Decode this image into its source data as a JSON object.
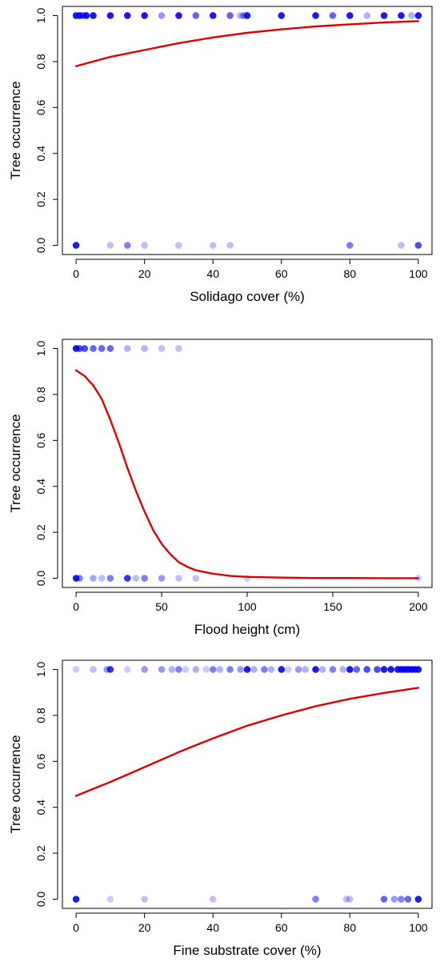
{
  "colors": {
    "points": "#0000ee",
    "fit_line": "#e00000",
    "axis": "#000000"
  },
  "chart_data": [
    {
      "type": "scatter",
      "title": "",
      "xlabel": "Solidago cover (%)",
      "ylabel": "Tree occurrence",
      "xlim": [
        -4,
        104
      ],
      "ylim": [
        -0.04,
        1.04
      ],
      "xticks": [
        0,
        20,
        40,
        60,
        80,
        100
      ],
      "yticks": [
        0.0,
        0.2,
        0.4,
        0.6,
        0.8,
        1.0
      ],
      "grid": false,
      "legend": "none",
      "points": [
        {
          "x": 0,
          "y": 1,
          "alpha": 0.9
        },
        {
          "x": 1,
          "y": 1,
          "alpha": 0.9
        },
        {
          "x": 2,
          "y": 1,
          "alpha": 0.7
        },
        {
          "x": 3,
          "y": 1,
          "alpha": 0.9
        },
        {
          "x": 5,
          "y": 1,
          "alpha": 0.9
        },
        {
          "x": 10,
          "y": 1,
          "alpha": 0.9
        },
        {
          "x": 15,
          "y": 1,
          "alpha": 0.9
        },
        {
          "x": 20,
          "y": 1,
          "alpha": 0.9
        },
        {
          "x": 25,
          "y": 1,
          "alpha": 0.4
        },
        {
          "x": 30,
          "y": 1,
          "alpha": 0.9
        },
        {
          "x": 35,
          "y": 1,
          "alpha": 0.6
        },
        {
          "x": 40,
          "y": 1,
          "alpha": 0.9
        },
        {
          "x": 45,
          "y": 1,
          "alpha": 0.6
        },
        {
          "x": 48,
          "y": 1,
          "alpha": 0.3
        },
        {
          "x": 49,
          "y": 1,
          "alpha": 0.5
        },
        {
          "x": 50,
          "y": 1,
          "alpha": 0.9
        },
        {
          "x": 60,
          "y": 1,
          "alpha": 0.9
        },
        {
          "x": 70,
          "y": 1,
          "alpha": 0.9
        },
        {
          "x": 75,
          "y": 1,
          "alpha": 0.6
        },
        {
          "x": 80,
          "y": 1,
          "alpha": 0.9
        },
        {
          "x": 85,
          "y": 1,
          "alpha": 0.3
        },
        {
          "x": 90,
          "y": 1,
          "alpha": 0.9
        },
        {
          "x": 95,
          "y": 1,
          "alpha": 0.9
        },
        {
          "x": 98,
          "y": 1,
          "alpha": 0.3
        },
        {
          "x": 100,
          "y": 1,
          "alpha": 0.9
        },
        {
          "x": 0,
          "y": 0,
          "alpha": 0.9
        },
        {
          "x": 10,
          "y": 0,
          "alpha": 0.25
        },
        {
          "x": 15,
          "y": 0,
          "alpha": 0.5
        },
        {
          "x": 20,
          "y": 0,
          "alpha": 0.25
        },
        {
          "x": 30,
          "y": 0,
          "alpha": 0.25
        },
        {
          "x": 40,
          "y": 0,
          "alpha": 0.25
        },
        {
          "x": 45,
          "y": 0,
          "alpha": 0.25
        },
        {
          "x": 80,
          "y": 0,
          "alpha": 0.5
        },
        {
          "x": 95,
          "y": 0,
          "alpha": 0.25
        },
        {
          "x": 100,
          "y": 0,
          "alpha": 0.7
        }
      ],
      "fit": {
        "x": [
          0,
          10,
          20,
          30,
          40,
          50,
          60,
          70,
          80,
          90,
          100
        ],
        "y": [
          0.78,
          0.82,
          0.85,
          0.88,
          0.905,
          0.925,
          0.94,
          0.953,
          0.962,
          0.97,
          0.976
        ]
      }
    },
    {
      "type": "scatter",
      "title": "",
      "xlabel": "Flood height (cm)",
      "ylabel": "Tree occurrence",
      "xlim": [
        -8,
        208
      ],
      "ylim": [
        -0.04,
        1.04
      ],
      "xticks": [
        0,
        50,
        100,
        150,
        200
      ],
      "yticks": [
        0.0,
        0.2,
        0.4,
        0.6,
        0.8,
        1.0
      ],
      "grid": false,
      "legend": "none",
      "points": [
        {
          "x": 0,
          "y": 1,
          "alpha": 0.9
        },
        {
          "x": 2,
          "y": 1,
          "alpha": 0.7
        },
        {
          "x": 5,
          "y": 1,
          "alpha": 0.7
        },
        {
          "x": 10,
          "y": 1,
          "alpha": 0.6
        },
        {
          "x": 15,
          "y": 1,
          "alpha": 0.6
        },
        {
          "x": 20,
          "y": 1,
          "alpha": 0.6
        },
        {
          "x": 30,
          "y": 1,
          "alpha": 0.3
        },
        {
          "x": 40,
          "y": 1,
          "alpha": 0.3
        },
        {
          "x": 50,
          "y": 1,
          "alpha": 0.25
        },
        {
          "x": 60,
          "y": 1,
          "alpha": 0.25
        },
        {
          "x": 0,
          "y": 0,
          "alpha": 0.9
        },
        {
          "x": 2,
          "y": 0,
          "alpha": 0.5
        },
        {
          "x": 10,
          "y": 0,
          "alpha": 0.35
        },
        {
          "x": 15,
          "y": 0,
          "alpha": 0.25
        },
        {
          "x": 20,
          "y": 0,
          "alpha": 0.5
        },
        {
          "x": 30,
          "y": 0,
          "alpha": 0.8
        },
        {
          "x": 35,
          "y": 0,
          "alpha": 0.25
        },
        {
          "x": 40,
          "y": 0,
          "alpha": 0.5
        },
        {
          "x": 50,
          "y": 0,
          "alpha": 0.4
        },
        {
          "x": 60,
          "y": 0,
          "alpha": 0.25
        },
        {
          "x": 70,
          "y": 0,
          "alpha": 0.25
        },
        {
          "x": 100,
          "y": 0,
          "alpha": 0.2
        },
        {
          "x": 200,
          "y": 0,
          "alpha": 0.2
        }
      ],
      "fit": {
        "x": [
          0,
          5,
          10,
          15,
          20,
          25,
          30,
          35,
          40,
          45,
          50,
          55,
          60,
          65,
          70,
          80,
          90,
          100,
          120,
          140,
          160,
          180,
          200
        ],
        "y": [
          0.905,
          0.88,
          0.84,
          0.78,
          0.69,
          0.59,
          0.48,
          0.38,
          0.29,
          0.21,
          0.15,
          0.105,
          0.07,
          0.05,
          0.035,
          0.02,
          0.01,
          0.006,
          0.003,
          0.001,
          0.001,
          0.0005,
          0.0002
        ]
      }
    },
    {
      "type": "scatter",
      "title": "",
      "xlabel": "Fine substrate cover (%)",
      "ylabel": "Tree occurrence",
      "xlim": [
        -4,
        104
      ],
      "ylim": [
        -0.04,
        1.04
      ],
      "xticks": [
        0,
        20,
        40,
        60,
        80,
        100
      ],
      "yticks": [
        0.0,
        0.2,
        0.4,
        0.6,
        0.8,
        1.0
      ],
      "grid": false,
      "legend": "none",
      "points": [
        {
          "x": 0,
          "y": 1,
          "alpha": 0.2
        },
        {
          "x": 5,
          "y": 1,
          "alpha": 0.25
        },
        {
          "x": 9,
          "y": 1,
          "alpha": 0.4
        },
        {
          "x": 10,
          "y": 1,
          "alpha": 0.8
        },
        {
          "x": 15,
          "y": 1,
          "alpha": 0.2
        },
        {
          "x": 20,
          "y": 1,
          "alpha": 0.4
        },
        {
          "x": 25,
          "y": 1,
          "alpha": 0.4
        },
        {
          "x": 28,
          "y": 1,
          "alpha": 0.3
        },
        {
          "x": 30,
          "y": 1,
          "alpha": 0.5
        },
        {
          "x": 32,
          "y": 1,
          "alpha": 0.2
        },
        {
          "x": 35,
          "y": 1,
          "alpha": 0.3
        },
        {
          "x": 38,
          "y": 1,
          "alpha": 0.2
        },
        {
          "x": 40,
          "y": 1,
          "alpha": 0.5
        },
        {
          "x": 42,
          "y": 1,
          "alpha": 0.3
        },
        {
          "x": 45,
          "y": 1,
          "alpha": 0.5
        },
        {
          "x": 48,
          "y": 1,
          "alpha": 0.4
        },
        {
          "x": 50,
          "y": 1,
          "alpha": 0.9
        },
        {
          "x": 52,
          "y": 1,
          "alpha": 0.3
        },
        {
          "x": 55,
          "y": 1,
          "alpha": 0.5
        },
        {
          "x": 57,
          "y": 1,
          "alpha": 0.3
        },
        {
          "x": 60,
          "y": 1,
          "alpha": 0.9
        },
        {
          "x": 62,
          "y": 1,
          "alpha": 0.2
        },
        {
          "x": 65,
          "y": 1,
          "alpha": 0.4
        },
        {
          "x": 67,
          "y": 1,
          "alpha": 0.3
        },
        {
          "x": 70,
          "y": 1,
          "alpha": 0.9
        },
        {
          "x": 72,
          "y": 1,
          "alpha": 0.3
        },
        {
          "x": 75,
          "y": 1,
          "alpha": 0.5
        },
        {
          "x": 78,
          "y": 1,
          "alpha": 0.3
        },
        {
          "x": 80,
          "y": 1,
          "alpha": 0.9
        },
        {
          "x": 82,
          "y": 1,
          "alpha": 0.6
        },
        {
          "x": 85,
          "y": 1,
          "alpha": 0.7
        },
        {
          "x": 88,
          "y": 1,
          "alpha": 0.7
        },
        {
          "x": 90,
          "y": 1,
          "alpha": 0.9
        },
        {
          "x": 92,
          "y": 1,
          "alpha": 0.9
        },
        {
          "x": 94,
          "y": 1,
          "alpha": 0.9
        },
        {
          "x": 95,
          "y": 1,
          "alpha": 0.9
        },
        {
          "x": 96,
          "y": 1,
          "alpha": 0.9
        },
        {
          "x": 97,
          "y": 1,
          "alpha": 0.9
        },
        {
          "x": 98,
          "y": 1,
          "alpha": 0.9
        },
        {
          "x": 99,
          "y": 1,
          "alpha": 0.9
        },
        {
          "x": 100,
          "y": 1,
          "alpha": 0.9
        },
        {
          "x": 0,
          "y": 0,
          "alpha": 0.9
        },
        {
          "x": 10,
          "y": 0,
          "alpha": 0.2
        },
        {
          "x": 20,
          "y": 0,
          "alpha": 0.25
        },
        {
          "x": 40,
          "y": 0,
          "alpha": 0.25
        },
        {
          "x": 70,
          "y": 0,
          "alpha": 0.5
        },
        {
          "x": 79,
          "y": 0,
          "alpha": 0.25
        },
        {
          "x": 80,
          "y": 0,
          "alpha": 0.25
        },
        {
          "x": 90,
          "y": 0,
          "alpha": 0.6
        },
        {
          "x": 93,
          "y": 0,
          "alpha": 0.4
        },
        {
          "x": 95,
          "y": 0,
          "alpha": 0.5
        },
        {
          "x": 97,
          "y": 0,
          "alpha": 0.6
        },
        {
          "x": 100,
          "y": 0,
          "alpha": 0.9
        }
      ],
      "fit": {
        "x": [
          0,
          10,
          20,
          30,
          40,
          50,
          60,
          70,
          80,
          90,
          100
        ],
        "y": [
          0.45,
          0.51,
          0.575,
          0.64,
          0.7,
          0.755,
          0.8,
          0.84,
          0.872,
          0.898,
          0.92
        ]
      }
    }
  ]
}
